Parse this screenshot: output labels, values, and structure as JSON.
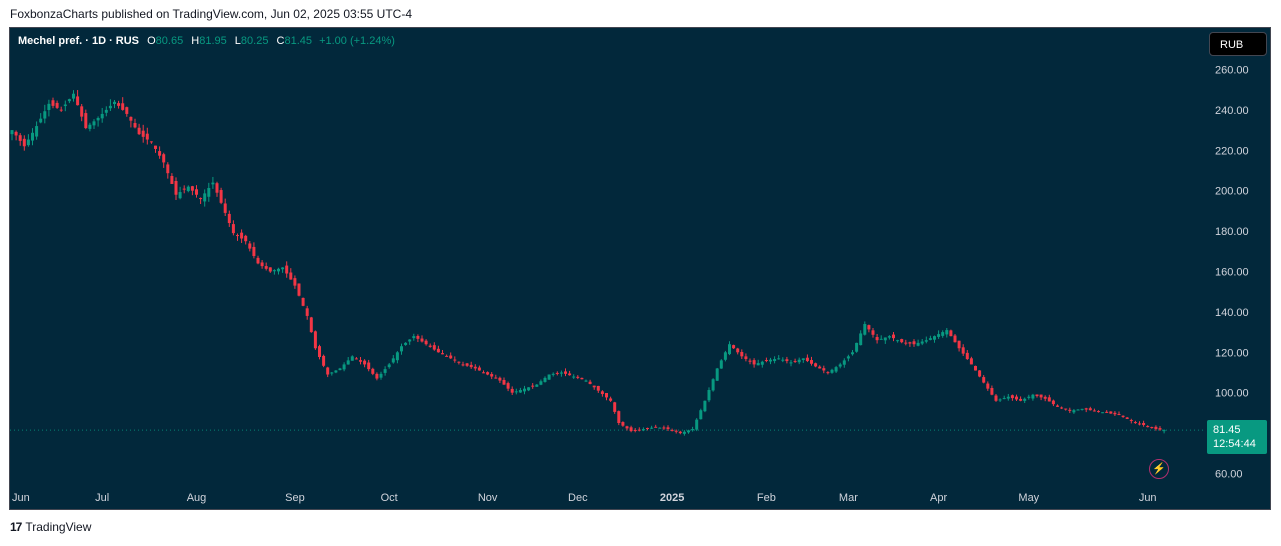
{
  "header": {
    "publisher_line": "FoxbonzaCharts published on TradingView.com, Jun 02, 2025 03:55 UTC-4"
  },
  "legend": {
    "symbol_line": "Mechel pref. · 1D · RUS",
    "o_label": "O",
    "o_value": "80.65",
    "h_label": "H",
    "h_value": "81.95",
    "l_label": "L",
    "l_value": "80.25",
    "c_label": "C",
    "c_value": "81.45",
    "change": "+1.00 (+1.24%)"
  },
  "currency_button": "RUB",
  "last_price": {
    "value": "81.45",
    "countdown": "12:54:44"
  },
  "footer": {
    "logo_glyph": "17",
    "brand": "TradingView"
  },
  "colors": {
    "background": "#02283b",
    "up": "#089981",
    "down": "#f23645",
    "text": "#d1d4dc"
  },
  "icons": {
    "alert": "lightning-bolt-icon",
    "logo": "tradingview-logo-icon"
  },
  "chart_data": {
    "type": "candlestick",
    "title": "Mechel pref. · 1D · RUS",
    "xlabel": "",
    "ylabel": "",
    "ylim": [
      54,
      272
    ],
    "y_ticks": [
      "260.00",
      "240.00",
      "220.00",
      "200.00",
      "180.00",
      "160.00",
      "140.00",
      "120.00",
      "100.00",
      "60.00"
    ],
    "x_ticks": [
      "Jun",
      "Jul",
      "Aug",
      "Sep",
      "Oct",
      "Nov",
      "Dec",
      "2025",
      "Feb",
      "Mar",
      "Apr",
      "May",
      "Jun"
    ],
    "grid": false,
    "last_price": 81.45,
    "close_path": [
      [
        0,
        230
      ],
      [
        3,
        222
      ],
      [
        6,
        232
      ],
      [
        9,
        243
      ],
      [
        12,
        240
      ],
      [
        15,
        248
      ],
      [
        18,
        231
      ],
      [
        21,
        236
      ],
      [
        25,
        244
      ],
      [
        28,
        238
      ],
      [
        31,
        228
      ],
      [
        34,
        224
      ],
      [
        37,
        214
      ],
      [
        40,
        198
      ],
      [
        43,
        202
      ],
      [
        46,
        196
      ],
      [
        49,
        204
      ],
      [
        51,
        194
      ],
      [
        54,
        179
      ],
      [
        57,
        175
      ],
      [
        60,
        164
      ],
      [
        63,
        160
      ],
      [
        66,
        162
      ],
      [
        69,
        153
      ],
      [
        72,
        138
      ],
      [
        74,
        122
      ],
      [
        77,
        109
      ],
      [
        80,
        112
      ],
      [
        83,
        118
      ],
      [
        86,
        114
      ],
      [
        89,
        107
      ],
      [
        92,
        114
      ],
      [
        95,
        123
      ],
      [
        98,
        128
      ],
      [
        101,
        124
      ],
      [
        104,
        120
      ],
      [
        107,
        117
      ],
      [
        110,
        114
      ],
      [
        113,
        112
      ],
      [
        116,
        109
      ],
      [
        119,
        106
      ],
      [
        122,
        100
      ],
      [
        125,
        102
      ],
      [
        128,
        104
      ],
      [
        131,
        109
      ],
      [
        134,
        110
      ],
      [
        137,
        108
      ],
      [
        140,
        106
      ],
      [
        143,
        101
      ],
      [
        146,
        96
      ],
      [
        148,
        85
      ],
      [
        151,
        81
      ],
      [
        154,
        82
      ],
      [
        157,
        83
      ],
      [
        160,
        82
      ],
      [
        163,
        80
      ],
      [
        166,
        82
      ],
      [
        169,
        96
      ],
      [
        172,
        112
      ],
      [
        175,
        124
      ],
      [
        178,
        118
      ],
      [
        181,
        114
      ],
      [
        184,
        116
      ],
      [
        187,
        117
      ],
      [
        190,
        115
      ],
      [
        193,
        117
      ],
      [
        196,
        113
      ],
      [
        199,
        110
      ],
      [
        202,
        114
      ],
      [
        205,
        120
      ],
      [
        208,
        134
      ],
      [
        211,
        126
      ],
      [
        214,
        128
      ],
      [
        217,
        125
      ],
      [
        220,
        124
      ],
      [
        223,
        126
      ],
      [
        226,
        129
      ],
      [
        228,
        131
      ],
      [
        231,
        122
      ],
      [
        234,
        114
      ],
      [
        237,
        105
      ],
      [
        240,
        96
      ],
      [
        243,
        98
      ],
      [
        246,
        96
      ],
      [
        249,
        99
      ],
      [
        252,
        97
      ],
      [
        255,
        93
      ],
      [
        258,
        91
      ],
      [
        261,
        92
      ],
      [
        264,
        91
      ],
      [
        267,
        90
      ],
      [
        270,
        89
      ],
      [
        273,
        86
      ],
      [
        276,
        84
      ],
      [
        279,
        82
      ],
      [
        281,
        81.45
      ]
    ]
  }
}
